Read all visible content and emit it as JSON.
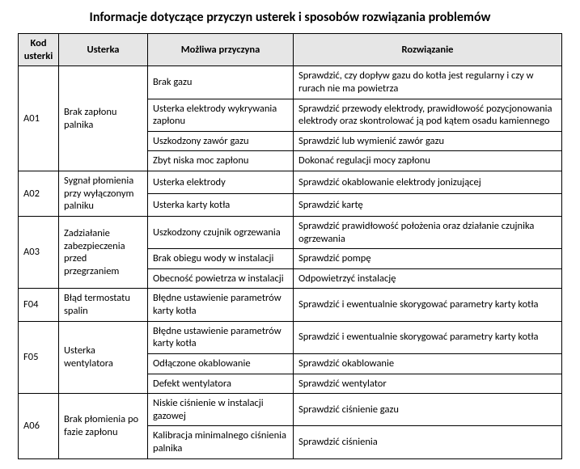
{
  "title": "Informacje dotyczące przyczyn usterek i sposobów rozwiązania problemów",
  "columns": [
    "Kod usterki",
    "Usterka",
    "Możliwa przyczyna",
    "Rozwiązanie"
  ],
  "groups": [
    {
      "code": "A01",
      "fault": "Brak zapłonu palnika",
      "rows": [
        {
          "cause": "Brak gazu",
          "solution": "Sprawdzić, czy dopływ gazu do kotła jest regularny i czy w rurach nie ma powietrza"
        },
        {
          "cause": "Usterka elektrody wykrywania zapłonu",
          "solution": "Sprawdzić przewody elektrody, prawidłowość pozycjonowania elektrody oraz skontrolować ją pod kątem osadu kamiennego"
        },
        {
          "cause": "Uszkodzony zawór gazu",
          "solution": "Sprawdzić lub wymienić zawór gazu"
        },
        {
          "cause": "Zbyt niska moc zapłonu",
          "solution": "Dokonać regulacji mocy zapłonu"
        }
      ]
    },
    {
      "code": "A02",
      "fault": "Sygnał płomienia przy wyłączonym palniku",
      "rows": [
        {
          "cause": "Usterka elektrody",
          "solution": "Sprawdzić okablowanie elektrody jonizującej"
        },
        {
          "cause": "Usterka karty kotła",
          "solution": "Sprawdzić kartę"
        }
      ]
    },
    {
      "code": "A03",
      "fault": "Zadziałanie zabezpieczenia przed przegrzaniem",
      "rows": [
        {
          "cause": "Uszkodzony czujnik ogrzewania",
          "solution": "Sprawdzić prawidłowość położenia oraz działanie czujnika ogrzewania"
        },
        {
          "cause": "Brak obiegu wody w instalacji",
          "solution": "Sprawdzić pompę"
        },
        {
          "cause": "Obecność powietrza w instalacji",
          "solution": "Odpowietrzyć instalację"
        }
      ]
    },
    {
      "code": "F04",
      "fault": "Błąd termostatu spalin",
      "rows": [
        {
          "cause": "Błędne ustawienie parametrów karty kotła",
          "solution": "Sprawdzić i ewentualnie skorygować parametry karty kotła"
        }
      ]
    },
    {
      "code": "F05",
      "fault": "Usterka wentylatora",
      "rows": [
        {
          "cause": "Błędne ustawienie parametrów karty kotła",
          "solution": "Sprawdzić i ewentualnie skorygować parametry karty kotła"
        },
        {
          "cause": "Odłączone okablowanie",
          "solution": "Sprawdzić okablowanie"
        },
        {
          "cause": "Defekt wentylatora",
          "solution": "Sprawdzić wentylator"
        }
      ]
    },
    {
      "code": "A06",
      "fault": "Brak płomienia po fazie zapłonu",
      "rows": [
        {
          "cause": "Niskie ciśnienie w instalacji gazowej",
          "solution": "Sprawdzić ciśnienie gazu"
        },
        {
          "cause": "Kalibracja minimalnego ciśnienia palnika",
          "solution": "Sprawdzić ciśnienia"
        }
      ]
    }
  ]
}
